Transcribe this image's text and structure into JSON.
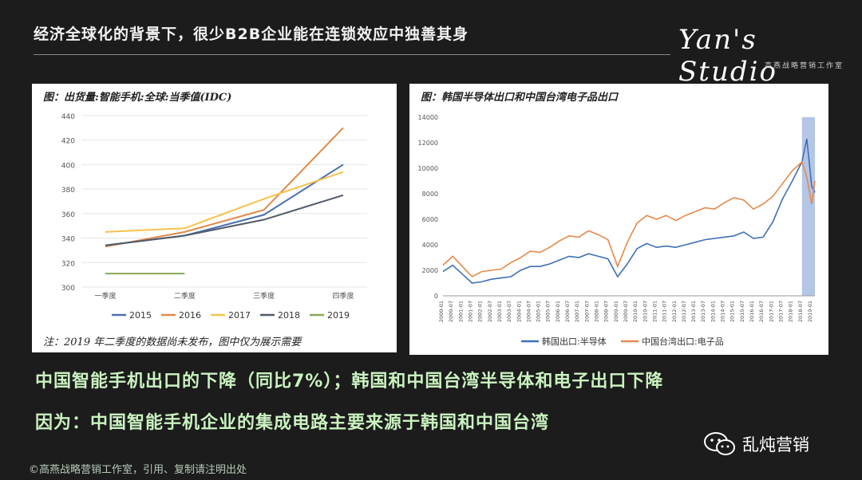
{
  "header": {
    "title": "经济全球化的背景下，很少B2B企业能在连锁效应中独善其身",
    "logo_text": "Yan's Studio",
    "logo_sub": "高燕战略营销工作室"
  },
  "panels": {
    "left_title": "图：出货量:智能手机:全球:当季值(IDC)",
    "left_note": "注：2019 年二季度的数据尚未发布，图中仅为展示需要",
    "right_title": "图：韩国半导体出口和中国台湾电子品出口"
  },
  "body_text": {
    "line1": "中国智能手机出口的下降（同比7%）；韩国和中国台湾半导体和电子出口下降",
    "line2": "因为：中国智能手机企业的集成电路主要来源于韩国和中国台湾"
  },
  "footer": {
    "copyright": "©高燕战略营销工作室，引用、复制请注明出处"
  },
  "wechat": {
    "name": "乱炖营销",
    "icon": "wechat-icon"
  },
  "chart_data": [
    {
      "type": "line",
      "categories": [
        "一季度",
        "二季度",
        "三季度",
        "四季度"
      ],
      "ylim": [
        300,
        440
      ],
      "yticks": [
        300,
        320,
        340,
        360,
        380,
        400,
        420,
        440
      ],
      "grid": true,
      "legend": "bottom",
      "series": [
        {
          "name": "2015",
          "color": "#4a72b0",
          "values": [
            334,
            342,
            359,
            400
          ]
        },
        {
          "name": "2016",
          "color": "#e08a4a",
          "values": [
            333,
            345,
            363,
            430
          ]
        },
        {
          "name": "2017",
          "color": "#f5c24c",
          "values": [
            345,
            348,
            372,
            394
          ]
        },
        {
          "name": "2018",
          "color": "#505a68",
          "values": [
            334,
            342,
            355,
            375
          ]
        },
        {
          "name": "2019",
          "color": "#8aa85a",
          "values": [
            311,
            311,
            null,
            null
          ]
        }
      ]
    },
    {
      "type": "line",
      "ylim": [
        0,
        14000
      ],
      "yticks": [
        0,
        2000,
        4000,
        6000,
        8000,
        10000,
        12000,
        14000
      ],
      "x_start": "2000-01",
      "x_end": "2019-03",
      "x_tick_labels": [
        "2000-01",
        "2000-07",
        "2001-01",
        "2001-07",
        "2002-01",
        "2002-07",
        "2003-01",
        "2003-07",
        "2004-01",
        "2004-07",
        "2005-01",
        "2005-07",
        "2006-01",
        "2006-07",
        "2007-01",
        "2007-07",
        "2008-01",
        "2008-07",
        "2009-01",
        "2009-07",
        "2010-01",
        "2010-07",
        "2011-01",
        "2011-07",
        "2012-01",
        "2012-07",
        "2013-01",
        "2013-07",
        "2014-01",
        "2014-07",
        "2015-01",
        "2015-07",
        "2016-01",
        "2016-07",
        "2017-01",
        "2017-07",
        "2018-01",
        "2018-07",
        "2019-01"
      ],
      "highlight_band": [
        "2018-07",
        "2019-03"
      ],
      "legend": "bottom",
      "series": [
        {
          "name": "韩国出口:半导体",
          "color": "#3f6fb5",
          "x": [
            "2000-01",
            "2000-07",
            "2001-01",
            "2001-07",
            "2002-01",
            "2002-07",
            "2003-01",
            "2003-07",
            "2004-01",
            "2004-07",
            "2005-01",
            "2005-07",
            "2006-01",
            "2006-07",
            "2007-01",
            "2007-07",
            "2008-01",
            "2008-07",
            "2009-01",
            "2009-07",
            "2010-01",
            "2010-07",
            "2011-01",
            "2011-07",
            "2012-01",
            "2012-07",
            "2013-01",
            "2013-07",
            "2014-01",
            "2014-07",
            "2015-01",
            "2015-07",
            "2016-01",
            "2016-07",
            "2017-01",
            "2017-07",
            "2018-01",
            "2018-07",
            "2018-10",
            "2019-01",
            "2019-03"
          ],
          "values": [
            1900,
            2400,
            1700,
            1000,
            1100,
            1300,
            1400,
            1500,
            2000,
            2300,
            2300,
            2500,
            2800,
            3100,
            3000,
            3300,
            3100,
            2900,
            1500,
            2500,
            3700,
            4100,
            3800,
            3900,
            3800,
            4000,
            4200,
            4400,
            4500,
            4600,
            4700,
            5000,
            4500,
            4600,
            5800,
            7600,
            9000,
            10500,
            12300,
            8600,
            8100
          ]
        },
        {
          "name": "中国台湾出口:电子品",
          "color": "#e6894a",
          "x": [
            "2000-01",
            "2000-07",
            "2001-01",
            "2001-07",
            "2002-01",
            "2002-07",
            "2003-01",
            "2003-07",
            "2004-01",
            "2004-07",
            "2005-01",
            "2005-07",
            "2006-01",
            "2006-07",
            "2007-01",
            "2007-07",
            "2008-01",
            "2008-07",
            "2009-01",
            "2009-07",
            "2010-01",
            "2010-07",
            "2011-01",
            "2011-07",
            "2012-01",
            "2012-07",
            "2013-01",
            "2013-07",
            "2014-01",
            "2014-07",
            "2015-01",
            "2015-07",
            "2016-01",
            "2016-07",
            "2017-01",
            "2017-07",
            "2018-01",
            "2018-07",
            "2018-10",
            "2019-01",
            "2019-03"
          ],
          "values": [
            2400,
            3100,
            2300,
            1500,
            1900,
            2000,
            2100,
            2600,
            3000,
            3500,
            3400,
            3800,
            4300,
            4700,
            4600,
            5100,
            4800,
            4400,
            2300,
            4200,
            5700,
            6300,
            6000,
            6300,
            5900,
            6300,
            6600,
            6900,
            6800,
            7300,
            7700,
            7500,
            6800,
            7200,
            7800,
            8800,
            9800,
            10500,
            9300,
            7200,
            9000
          ]
        }
      ]
    }
  ]
}
